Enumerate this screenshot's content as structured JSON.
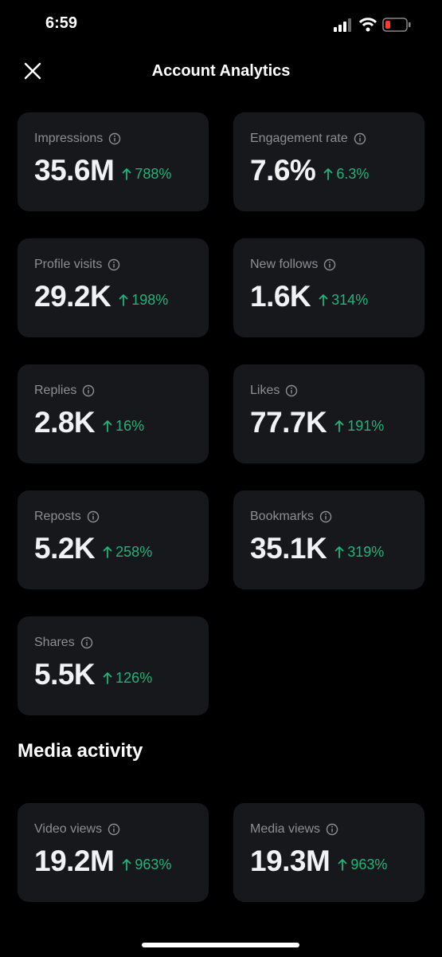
{
  "status": {
    "time": "6:59"
  },
  "header": {
    "title": "Account Analytics"
  },
  "cards": [
    {
      "label": "Impressions",
      "value": "35.6M",
      "change": "788%"
    },
    {
      "label": "Engagement rate",
      "value": "7.6%",
      "change": "6.3%"
    },
    {
      "label": "Profile visits",
      "value": "29.2K",
      "change": "198%"
    },
    {
      "label": "New follows",
      "value": "1.6K",
      "change": "314%"
    },
    {
      "label": "Replies",
      "value": "2.8K",
      "change": "16%"
    },
    {
      "label": "Likes",
      "value": "77.7K",
      "change": "191%"
    },
    {
      "label": "Reposts",
      "value": "5.2K",
      "change": "258%"
    },
    {
      "label": "Bookmarks",
      "value": "35.1K",
      "change": "319%"
    },
    {
      "label": "Shares",
      "value": "5.5K",
      "change": "126%"
    }
  ],
  "media": {
    "title": "Media activity",
    "cards": [
      {
        "label": "Video views",
        "value": "19.2M",
        "change": "963%"
      },
      {
        "label": "Media views",
        "value": "19.3M",
        "change": "963%"
      }
    ]
  }
}
